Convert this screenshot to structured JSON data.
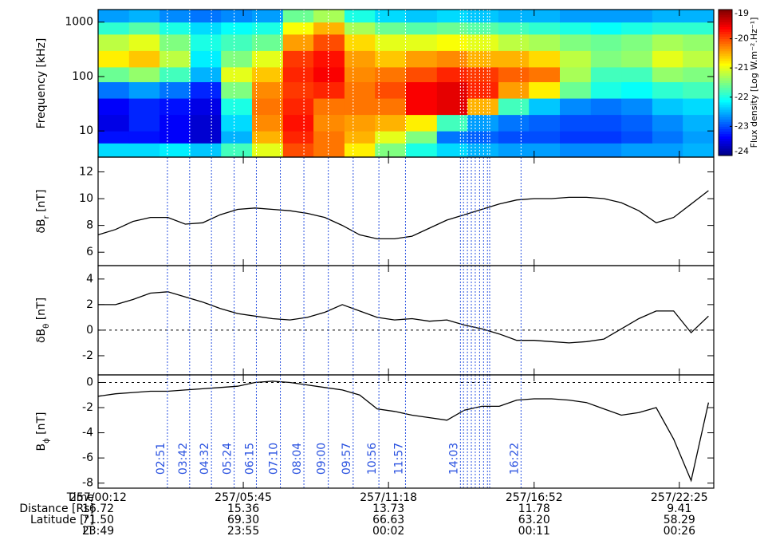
{
  "chart_data": [
    {
      "type": "heatmap",
      "ylabel": "Frequency [kHz]",
      "ylog": true,
      "ylim": [
        3.3,
        1700
      ],
      "yticks": [
        10,
        100,
        1000
      ],
      "time_bins": [
        12,
        83,
        153,
        224,
        294,
        365,
        436,
        506,
        577,
        647,
        718,
        789,
        859,
        930,
        1000,
        1071,
        1142,
        1212,
        1283,
        1353,
        1424
      ],
      "freq_bins": [
        3.3,
        6,
        10,
        20,
        40,
        80,
        150,
        300,
        600,
        1000,
        1700
      ],
      "z": [
        [
          -22.3,
          -22.3,
          -22.2,
          -22.4,
          -21.8,
          -21,
          -20,
          -20.2,
          -20.8,
          -21.5,
          -22,
          -22.3,
          -22.5,
          -22.6,
          -22.6,
          -22.7,
          -22.7,
          -22.6,
          -22.6,
          -22.5
        ],
        [
          -23.3,
          -23.3,
          -23.4,
          -23.6,
          -22.5,
          -20.5,
          -19.8,
          -20.2,
          -20.5,
          -21,
          -21.5,
          -22.8,
          -22.9,
          -23,
          -23,
          -23.1,
          -23.1,
          -23,
          -22.8,
          -22.6
        ],
        [
          -23.5,
          -23.2,
          -23.4,
          -23.6,
          -22.3,
          -20.3,
          -19.7,
          -20.3,
          -20.4,
          -20.5,
          -20.8,
          -21.8,
          -22.6,
          -22.8,
          -22.9,
          -23,
          -23,
          -22.9,
          -22.7,
          -22.5
        ],
        [
          -23.4,
          -23.2,
          -23.3,
          -23.5,
          -22,
          -20.2,
          -19.8,
          -20.2,
          -20.2,
          -20.2,
          -19.6,
          -19.5,
          -20.5,
          -21.8,
          -22.4,
          -22.7,
          -22.8,
          -22.7,
          -22.4,
          -22.3
        ],
        [
          -22.8,
          -22.6,
          -22.8,
          -23.2,
          -21.5,
          -20.3,
          -19.9,
          -19.8,
          -20.2,
          -20,
          -19.6,
          -19.5,
          -19.8,
          -20.4,
          -20.8,
          -21.6,
          -22,
          -22.1,
          -21.9,
          -21.8
        ],
        [
          -21.6,
          -21.4,
          -21.8,
          -22.5,
          -21,
          -20.6,
          -19.8,
          -19.6,
          -20.3,
          -20.2,
          -20,
          -19.8,
          -19.9,
          -20.1,
          -20.2,
          -21.3,
          -21.8,
          -21.8,
          -21.4,
          -21.5
        ],
        [
          -20.8,
          -20.6,
          -21.2,
          -22.2,
          -21.5,
          -21,
          -19.9,
          -19.7,
          -20.4,
          -20.6,
          -20.4,
          -20.3,
          -20.5,
          -20.5,
          -20.7,
          -21.2,
          -21.5,
          -21.4,
          -21,
          -21.2
        ],
        [
          -21.2,
          -21,
          -21.5,
          -22,
          -21.8,
          -21.6,
          -20.4,
          -20,
          -20.7,
          -21,
          -21,
          -20.9,
          -21,
          -21.2,
          -21.3,
          -21.5,
          -21.6,
          -21.5,
          -21.3,
          -21.4
        ],
        [
          -21.9,
          -21.7,
          -22,
          -22.3,
          -22.1,
          -22,
          -20.9,
          -20.5,
          -21.3,
          -21.6,
          -21.7,
          -21.6,
          -21.7,
          -21.8,
          -21.9,
          -22,
          -22.1,
          -22,
          -21.9,
          -21.9
        ],
        [
          -22.6,
          -22.5,
          -22.7,
          -22.8,
          -22.7,
          -22.6,
          -21.6,
          -21.3,
          -22,
          -22.3,
          -22.4,
          -22.3,
          -22.4,
          -22.5,
          -22.5,
          -22.6,
          -22.6,
          -22.6,
          -22.5,
          -22.5
        ]
      ],
      "clim": [
        -24,
        -19
      ],
      "cticks": [
        -19,
        -20,
        -21,
        -22,
        -23,
        -24
      ],
      "clabel": "Flux density [Log W.m⁻².Hz⁻¹]",
      "colormap": "jet"
    },
    {
      "type": "line",
      "ylabel": [
        "δB",
        "r",
        " [nT]"
      ],
      "ylim": [
        5,
        13.1
      ],
      "yticks": [
        6,
        8,
        10,
        12
      ],
      "color": "#000000",
      "values": [
        7.3,
        7.7,
        8.3,
        8.6,
        8.6,
        8.1,
        8.2,
        8.8,
        9.2,
        9.3,
        9.2,
        9.1,
        8.9,
        8.6,
        8.0,
        7.3,
        7.0,
        7.0,
        7.2,
        7.8,
        8.4,
        8.8,
        9.2,
        9.6,
        9.9,
        10.0,
        10.0,
        10.1,
        10.1,
        10.0,
        9.7,
        9.1,
        8.2,
        8.6,
        9.6,
        10.6
      ]
    },
    {
      "type": "line",
      "ylabel": [
        "δB",
        "θ",
        " [nT]"
      ],
      "ylim": [
        -3.5,
        5.05
      ],
      "yticks": [
        -2,
        0,
        2,
        4
      ],
      "zero_line": true,
      "color": "#000000",
      "values": [
        2.0,
        2.0,
        2.4,
        2.9,
        3.0,
        2.6,
        2.2,
        1.7,
        1.3,
        1.1,
        0.9,
        0.8,
        1.0,
        1.4,
        2.0,
        1.5,
        1.0,
        0.8,
        0.9,
        0.7,
        0.8,
        0.4,
        0.1,
        -0.3,
        -0.8,
        -0.8,
        -0.9,
        -1.0,
        -0.9,
        -0.7,
        0.1,
        0.9,
        1.5,
        1.5,
        -0.2,
        1.1
      ]
    },
    {
      "type": "line",
      "ylabel": [
        "B",
        "ϕ",
        " [nT]"
      ],
      "ylim": [
        -8.4,
        0.6
      ],
      "yticks": [
        -8,
        -6,
        -4,
        -2,
        0
      ],
      "zero_line": true,
      "color": "#000000",
      "values": [
        -1.1,
        -0.9,
        -0.8,
        -0.7,
        -0.7,
        -0.6,
        -0.5,
        -0.4,
        -0.3,
        0.0,
        0.1,
        0.0,
        -0.2,
        -0.4,
        -0.6,
        -1.0,
        -2.1,
        -2.3,
        -2.6,
        -2.8,
        -3.0,
        -2.2,
        -1.9,
        -1.9,
        -1.4,
        -1.3,
        -1.3,
        -1.4,
        -1.6,
        -2.1,
        -2.6,
        -2.4,
        -2.0,
        -4.5,
        -7.8,
        -1.6
      ]
    }
  ],
  "x_axis": {
    "xlim": [
      12,
      1424
    ],
    "x": [
      12,
      52,
      92,
      132,
      172,
      212,
      252,
      292,
      332,
      372,
      412,
      452,
      492,
      532,
      572,
      612,
      652,
      692,
      732,
      772,
      812,
      852,
      892,
      932,
      972,
      1012,
      1052,
      1092,
      1132,
      1172,
      1212,
      1252,
      1292,
      1332,
      1372,
      1412
    ],
    "xticks": [
      {
        "value": 12,
        "label": "257/00:12"
      },
      {
        "value": 345,
        "label": "257/05:45"
      },
      {
        "value": 678,
        "label": "257/11:18"
      },
      {
        "value": 1012,
        "label": "257/16:52"
      },
      {
        "value": 1345,
        "label": "257/22:25"
      }
    ],
    "time_row_name": "Time",
    "rows": [
      {
        "name": "Distance [Rs]",
        "labels": [
          "16.72",
          "15.36",
          "13.73",
          "11.78",
          "9.41"
        ]
      },
      {
        "name": "Latitude [°]",
        "labels": [
          "71.50",
          "69.30",
          "66.63",
          "63.20",
          "58.29"
        ]
      },
      {
        "name": "LT",
        "labels": [
          "23:49",
          "23:55",
          "00:02",
          "00:11",
          "00:26"
        ]
      }
    ]
  },
  "events": {
    "color": "#2a52e0",
    "spectrogram_color": "#ffffff",
    "x": [
      171,
      222,
      272,
      324,
      375,
      430,
      484,
      540,
      597,
      656,
      717,
      843,
      850,
      859,
      868,
      877,
      887,
      896,
      905,
      910,
      982
    ],
    "labels": [
      "02:51",
      "03:42",
      "04:32",
      "05:24",
      "06:15",
      "07:10",
      "08:04",
      "09:00",
      "09:57",
      "10:56",
      "11:57",
      "14:03",
      null,
      null,
      null,
      null,
      null,
      null,
      null,
      null,
      "16:22"
    ]
  }
}
